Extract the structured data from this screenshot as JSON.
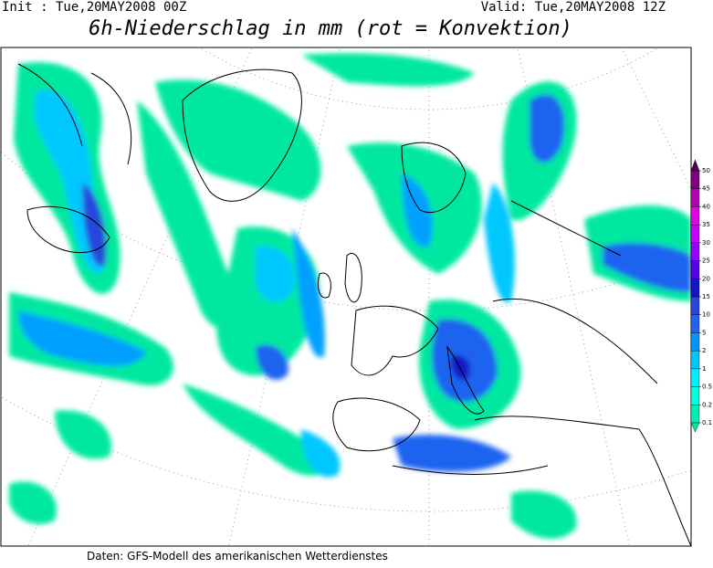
{
  "header": {
    "init": "Init : Tue,20MAY2008 00Z",
    "valid": "Valid: Tue,20MAY2008 12Z",
    "title": "6h-Niederschlag in mm (rot = Konvektion)"
  },
  "colorbar": {
    "levels": [
      0.1,
      0.2,
      0.5,
      1,
      2,
      5,
      10,
      15,
      20,
      25,
      30,
      35,
      40,
      45,
      50
    ],
    "colors": [
      "#00e88c",
      "#00f0b4",
      "#00ffdc",
      "#00f0ff",
      "#00c8ff",
      "#0096ff",
      "#1e64f0",
      "#2846dc",
      "#1414c8",
      "#5a00e6",
      "#9600ff",
      "#c800ff",
      "#e600e6",
      "#b400b4",
      "#820082",
      "#500050"
    ]
  },
  "footer": "Daten: GFS-Modell des amerikanischen Wetterdienstes"
}
